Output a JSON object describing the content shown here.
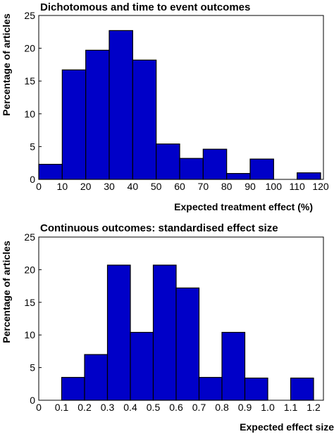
{
  "chart_data": [
    {
      "type": "bar",
      "title": "Dichotomous and time to event outcomes",
      "xlabel": "Expected treatment effect (%)",
      "ylabel": "Percentage of articles",
      "bin_edges": [
        0,
        10,
        20,
        30,
        40,
        50,
        60,
        70,
        80,
        90,
        100,
        110,
        120
      ],
      "x_tick_labels": [
        "0",
        "10",
        "20",
        "30",
        "40",
        "50",
        "60",
        "70",
        "80",
        "90",
        "100",
        "110",
        "120"
      ],
      "values": [
        2.3,
        16.7,
        19.7,
        22.7,
        18.2,
        5.4,
        3.2,
        4.6,
        0.9,
        3.1,
        0,
        1.0
      ],
      "ylim": [
        0,
        25
      ],
      "y_ticks": [
        "0",
        "5",
        "10",
        "15",
        "20",
        "25"
      ],
      "grid": false,
      "colors": {
        "bar_fill": "#0000c8",
        "bar_stroke": "#000000"
      }
    },
    {
      "type": "bar",
      "title": "Continuous outcomes: standardised effect size",
      "xlabel": "Expected effect size",
      "ylabel": "Percentage of articles",
      "bin_edges": [
        0,
        0.1,
        0.2,
        0.3,
        0.4,
        0.5,
        0.6,
        0.7,
        0.8,
        0.9,
        1.0,
        1.1,
        1.2
      ],
      "x_tick_labels": [
        "0",
        "0.1",
        "0.2",
        "0.3",
        "0.4",
        "0.5",
        "0.6",
        "0.7",
        "0.8",
        "0.9",
        "1.0",
        "1.1",
        "1.2"
      ],
      "values": [
        0,
        3.5,
        7.0,
        20.7,
        10.4,
        20.7,
        17.2,
        3.5,
        10.4,
        3.4,
        0,
        3.4
      ],
      "ylim": [
        0,
        25
      ],
      "y_ticks": [
        "0",
        "5",
        "10",
        "15",
        "20",
        "25"
      ],
      "grid": false,
      "colors": {
        "bar_fill": "#0000c8",
        "bar_stroke": "#000000"
      }
    }
  ]
}
